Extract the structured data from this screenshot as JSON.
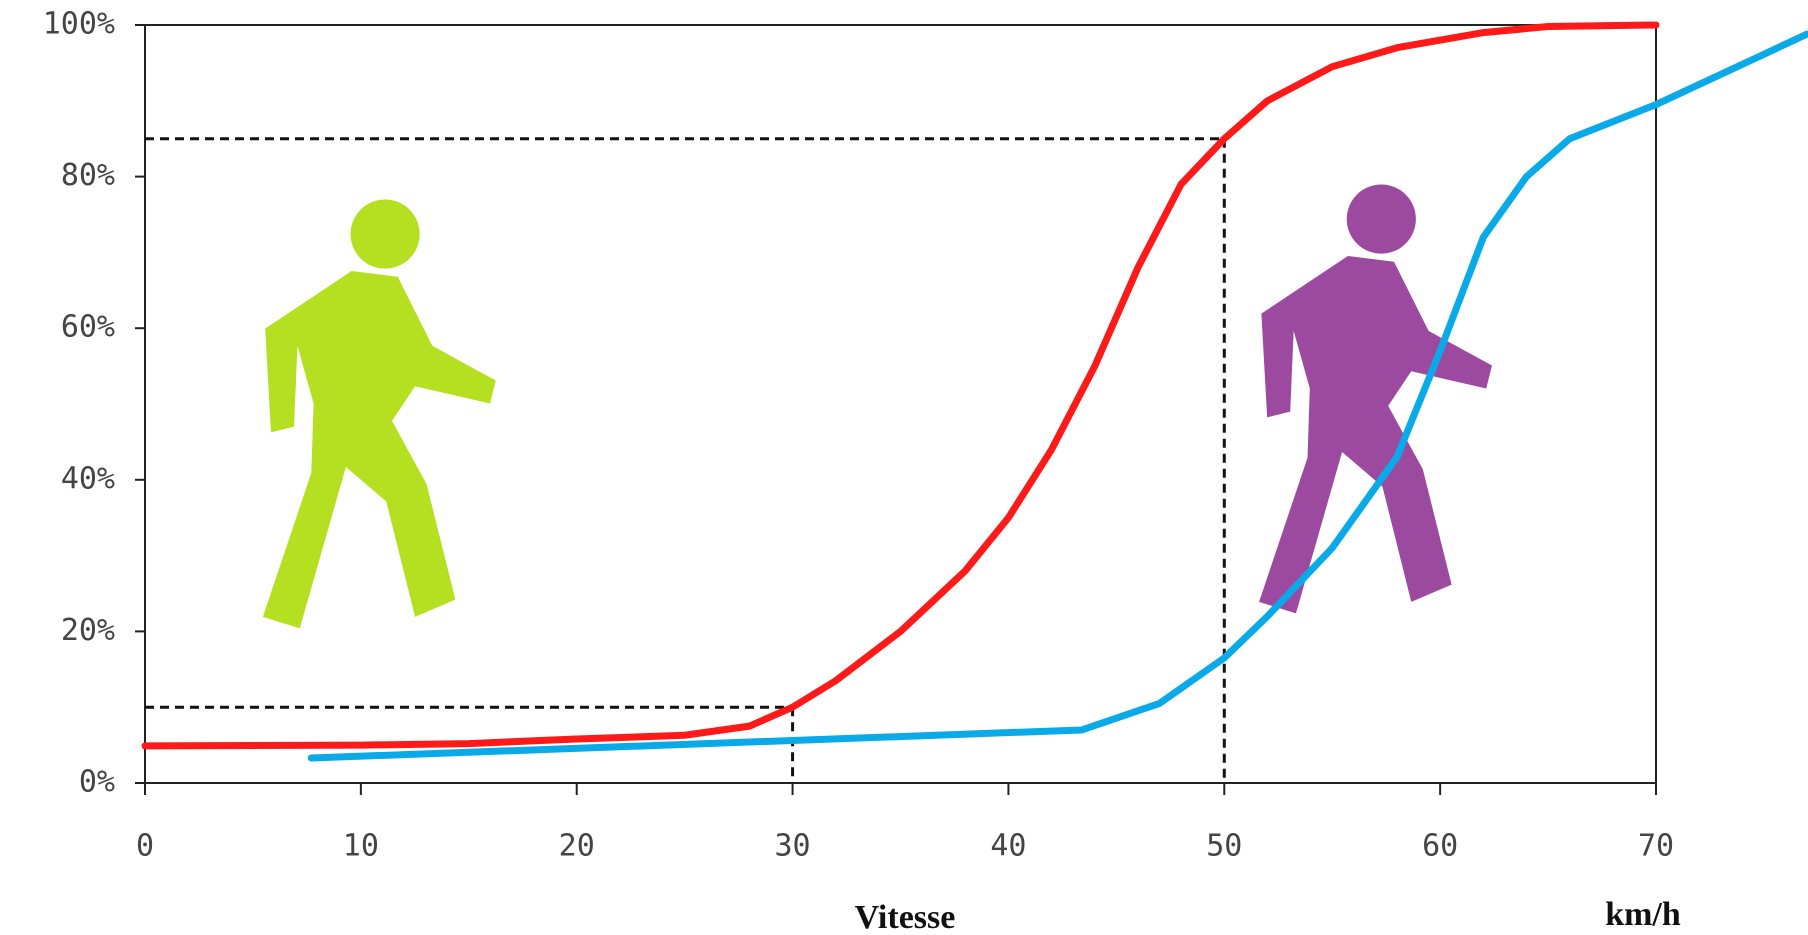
{
  "chart_data": {
    "type": "line",
    "x_label": "Vitesse",
    "unit_label": "km/h",
    "xlim": [
      0,
      70
    ],
    "xticks": [
      0,
      10,
      20,
      30,
      40,
      50,
      60,
      70
    ],
    "ylim": [
      0,
      100
    ],
    "yticks": [
      {
        "value": 0,
        "label": "0%"
      },
      {
        "value": 20,
        "label": "20%"
      },
      {
        "value": 40,
        "label": "40%"
      },
      {
        "value": 60,
        "label": "60%"
      },
      {
        "value": 80,
        "label": "80%"
      },
      {
        "value": 100,
        "label": "100%"
      }
    ],
    "series": [
      {
        "color": "#ff1a1a",
        "x": [
          0,
          10,
          15,
          20,
          25,
          28,
          30,
          32,
          35,
          38,
          40,
          42,
          44,
          46,
          48,
          50,
          52,
          55,
          58,
          62,
          65,
          70
        ],
        "values": [
          4.9,
          5,
          5.2,
          5.8,
          6.3,
          7.5,
          10,
          13.5,
          20,
          28,
          35,
          44,
          55,
          68,
          79,
          85,
          90,
          94.5,
          97,
          99,
          99.8,
          100
        ]
      },
      {
        "color": "#0aaae8",
        "x": [
          7.7,
          43.4,
          47,
          50,
          52,
          55,
          58,
          60,
          62,
          64,
          66,
          70,
          77
        ],
        "values": [
          3.3,
          7,
          10.5,
          16.5,
          22,
          31,
          43,
          57,
          72,
          80,
          85,
          89.5,
          98.8
        ]
      }
    ],
    "reference_lines": [
      {
        "x": 30,
        "y": 10
      },
      {
        "x": 50,
        "y": 85
      }
    ]
  }
}
